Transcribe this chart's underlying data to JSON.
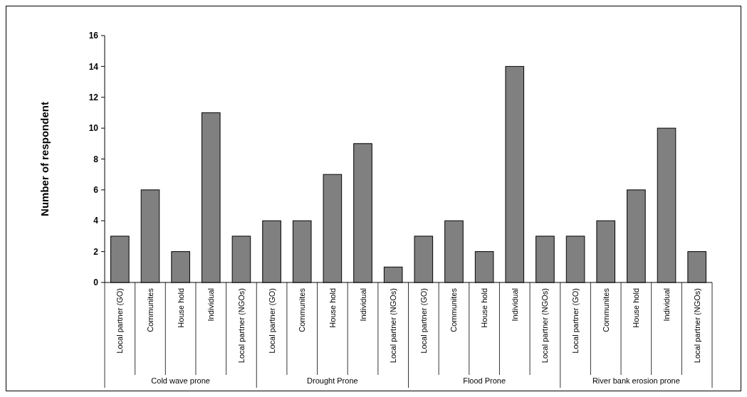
{
  "chart_data": {
    "type": "bar",
    "ylabel": "Number of respondent",
    "categories": [
      "Local partner (GO)",
      "Communites",
      "House hold",
      "Individual",
      "Local partner (NGOs)",
      "Local partner (GO)",
      "Communites",
      "House hold",
      "Individual",
      "Local partner (NGOs)",
      "Local partner (GO)",
      "Communites",
      "House hold",
      "Individual",
      "Local partner (NGOs)",
      "Local partner (GO)",
      "Communites",
      "House hold",
      "Individual",
      "Local partner (NGOs)"
    ],
    "values": [
      3,
      6,
      2,
      11,
      3,
      4,
      4,
      7,
      9,
      1,
      3,
      4,
      2,
      14,
      3,
      3,
      4,
      6,
      10,
      2
    ],
    "color": "#808080",
    "ylim": [
      0,
      16
    ],
    "yticks": [
      0,
      2,
      4,
      6,
      8,
      10,
      12,
      14,
      16
    ],
    "annotations": [
      "Cold wave prone",
      "Drought Prone",
      "Flood Prone",
      "River bank erosion prone"
    ]
  }
}
